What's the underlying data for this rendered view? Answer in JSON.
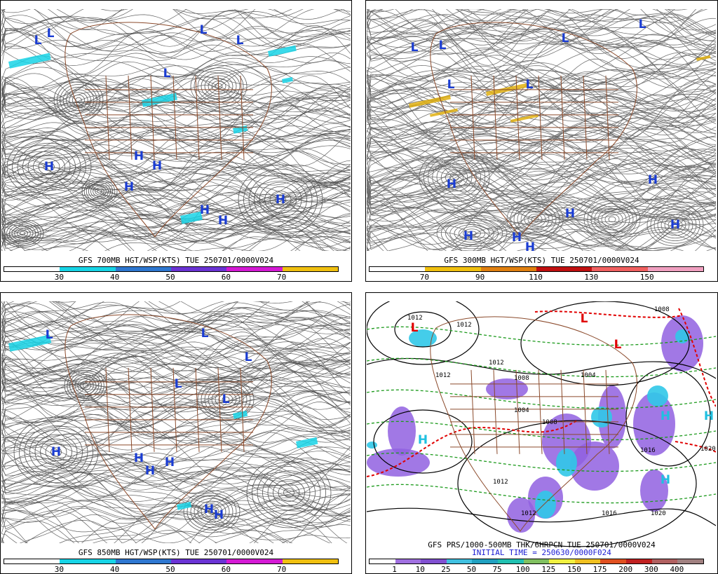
{
  "panels": [
    {
      "id": "p1",
      "title": "GFS 700MB HGT/WSP(KTS) TUE 250701/0000V024",
      "colorbar": [
        "#ffffff",
        "#17d4e6",
        "#2e77d0",
        "#6a33d4",
        "#d41ad4",
        "#f0c010"
      ],
      "ticks": [
        "30",
        "40",
        "50",
        "60",
        "70"
      ],
      "centers": [
        {
          "label": "L",
          "color": "blue"
        },
        {
          "label": "L",
          "color": "blue"
        },
        {
          "label": "L",
          "color": "blue"
        },
        {
          "label": "L",
          "color": "blue"
        },
        {
          "label": "L",
          "color": "blue"
        },
        {
          "label": "H",
          "color": "blue"
        },
        {
          "label": "H",
          "color": "blue"
        },
        {
          "label": "H",
          "color": "blue"
        },
        {
          "label": "H",
          "color": "blue"
        },
        {
          "label": "H",
          "color": "blue"
        },
        {
          "label": "H",
          "color": "blue"
        },
        {
          "label": "H",
          "color": "blue"
        }
      ]
    },
    {
      "id": "p2",
      "title": "GFS 300MB HGT/WSP(KTS) TUE 250701/0000V024",
      "colorbar": [
        "#ffffff",
        "#f0c010",
        "#e08010",
        "#c01010",
        "#f06060",
        "#f0a0c0"
      ],
      "ticks": [
        "70",
        "90",
        "110",
        "130",
        "150"
      ],
      "centers": [
        {
          "label": "L",
          "color": "blue"
        },
        {
          "label": "L",
          "color": "blue"
        },
        {
          "label": "L",
          "color": "blue"
        },
        {
          "label": "L",
          "color": "blue"
        },
        {
          "label": "L",
          "color": "blue"
        },
        {
          "label": "L",
          "color": "blue"
        },
        {
          "label": "H",
          "color": "blue"
        },
        {
          "label": "H",
          "color": "blue"
        },
        {
          "label": "H",
          "color": "blue"
        },
        {
          "label": "H",
          "color": "blue"
        },
        {
          "label": "H",
          "color": "blue"
        },
        {
          "label": "H",
          "color": "blue"
        },
        {
          "label": "H",
          "color": "blue"
        }
      ]
    },
    {
      "id": "p3",
      "title": "GFS 850MB HGT/WSP(KTS) TUE 250701/0000V024",
      "colorbar": [
        "#ffffff",
        "#17d4e6",
        "#2e77d0",
        "#6a33d4",
        "#d41ad4",
        "#f0c010"
      ],
      "ticks": [
        "30",
        "40",
        "50",
        "60",
        "70"
      ],
      "centers": [
        {
          "label": "L",
          "color": "blue"
        },
        {
          "label": "L",
          "color": "blue"
        },
        {
          "label": "L",
          "color": "blue"
        },
        {
          "label": "L",
          "color": "blue"
        },
        {
          "label": "L",
          "color": "blue"
        },
        {
          "label": "H",
          "color": "blue"
        },
        {
          "label": "H",
          "color": "blue"
        },
        {
          "label": "H",
          "color": "blue"
        },
        {
          "label": "H",
          "color": "blue"
        },
        {
          "label": "H",
          "color": "blue"
        },
        {
          "label": "H",
          "color": "blue"
        }
      ]
    },
    {
      "id": "p4",
      "title": "GFS PRS/1000-500MB THK/6HRPCN TUE 250701/0000V024",
      "subtitle": "INITIAL TIME = 250630/0000F024",
      "colorbar": [
        "#ffffff",
        "#a070e0",
        "#8050d0",
        "#40c0e0",
        "#20a0c0",
        "#20c0b0",
        "#80c060",
        "#f0f040",
        "#f0c020",
        "#e05020",
        "#c02020",
        "#b06060",
        "#a08080"
      ],
      "ticks": [
        "1",
        "10",
        "25",
        "50",
        "75",
        "100",
        "125",
        "150",
        "175",
        "200",
        "300",
        "400"
      ],
      "isobars": [
        "1012",
        "1012",
        "1008",
        "1012",
        "1012",
        "1004",
        "1004",
        "1008",
        "1012",
        "1016",
        "1012",
        "1016",
        "1020",
        "1020",
        "1008"
      ],
      "centers": [
        {
          "label": "L",
          "color": "red"
        },
        {
          "label": "L",
          "color": "red"
        },
        {
          "label": "L",
          "color": "red"
        },
        {
          "label": "H",
          "color": "cyan"
        },
        {
          "label": "H",
          "color": "cyan"
        },
        {
          "label": "H",
          "color": "cyan"
        },
        {
          "label": "H",
          "color": "cyan"
        }
      ]
    }
  ]
}
